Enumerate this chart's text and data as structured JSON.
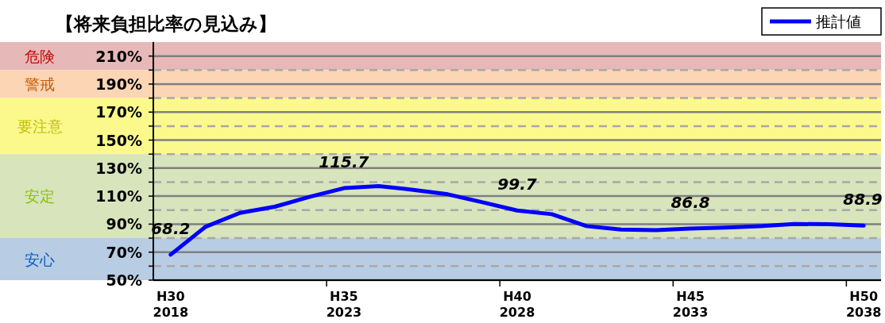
{
  "chart_data": {
    "type": "line",
    "title": "【将来負担比率の見込み】",
    "categories": [
      "H30\n2018",
      null,
      null,
      null,
      null,
      "H35\n2023",
      null,
      null,
      null,
      null,
      "H40\n2028",
      null,
      null,
      null,
      null,
      "H45\n2033",
      null,
      null,
      null,
      null,
      "H50\n2038"
    ],
    "series": [
      {
        "name": "推計値",
        "color": "#0000ff",
        "values": [
          68.2,
          88.0,
          98.0,
          102.4,
          109.4,
          115.7,
          117.2,
          114.5,
          111.3,
          105.6,
          99.7,
          97.1,
          88.6,
          86.1,
          85.7,
          86.8,
          87.6,
          88.6,
          90.1,
          89.9,
          88.9
        ],
        "value_labels": [
          "68.2",
          null,
          null,
          null,
          null,
          "115.7",
          null,
          null,
          null,
          null,
          "99.7",
          null,
          null,
          null,
          null,
          "86.8",
          null,
          null,
          null,
          null,
          "88.9"
        ]
      }
    ],
    "ylim": [
      50,
      220
    ],
    "yticks": [
      {
        "value": 50,
        "label": "50%"
      },
      {
        "value": 60,
        "label": null
      },
      {
        "value": 70,
        "label": "70%"
      },
      {
        "value": 80,
        "label": null
      },
      {
        "value": 90,
        "label": "90%"
      },
      {
        "value": 100,
        "label": null
      },
      {
        "value": 110,
        "label": "110%"
      },
      {
        "value": 120,
        "label": null
      },
      {
        "value": 130,
        "label": "130%"
      },
      {
        "value": 140,
        "label": null
      },
      {
        "value": 150,
        "label": "150%"
      },
      {
        "value": 160,
        "label": null
      },
      {
        "value": 170,
        "label": "170%"
      },
      {
        "value": 180,
        "label": null
      },
      {
        "value": 190,
        "label": "190%"
      },
      {
        "value": 200,
        "label": null
      },
      {
        "value": 210,
        "label": "210%"
      }
    ],
    "bands": [
      {
        "axis": "y",
        "from": 200,
        "to": 220,
        "label": "危険",
        "color": "#e6b8b7"
      },
      {
        "axis": "y",
        "from": 180,
        "to": 200,
        "label": "警戒",
        "color": "#fcd5b4"
      },
      {
        "axis": "y",
        "from": 140,
        "to": 180,
        "label": "要注意",
        "color": "#fbf98c"
      },
      {
        "axis": "y",
        "from": 80,
        "to": 140,
        "label": "安定",
        "color": "#d8e4bc"
      },
      {
        "axis": "y",
        "from": 50,
        "to": 80,
        "label": "安心",
        "color": "#b8cce4"
      }
    ],
    "grid": "y",
    "legend": "top right",
    "line_style": "solid",
    "marker": "none"
  }
}
